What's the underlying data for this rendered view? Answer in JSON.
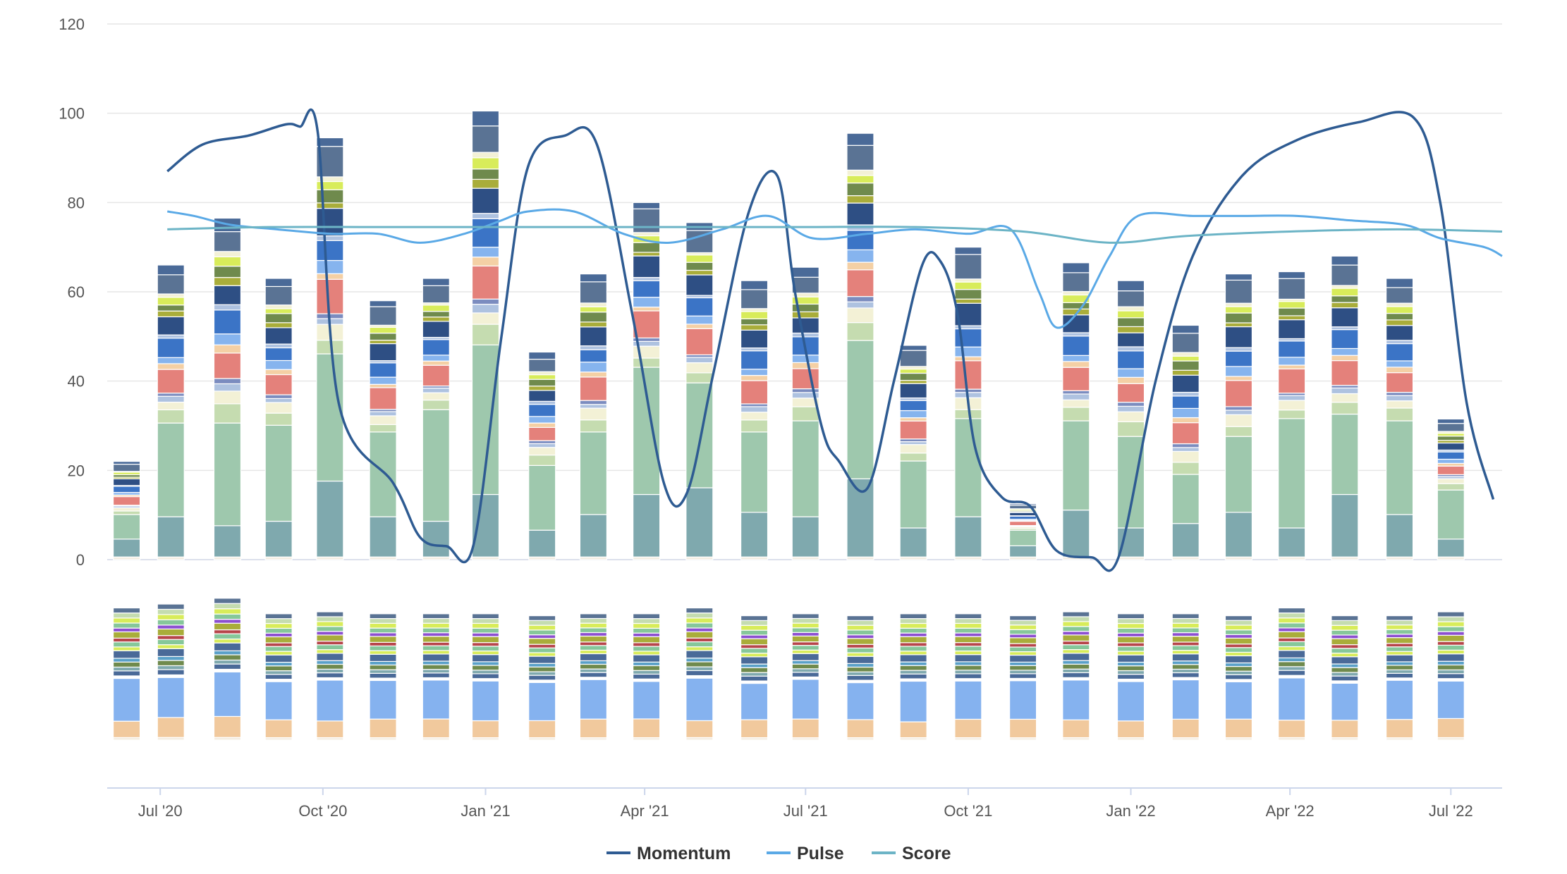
{
  "chart_data": {
    "type": "bar",
    "title": "",
    "xlabel": "",
    "ylabel": "",
    "ylim": [
      0,
      120
    ],
    "y_ticks": [
      0,
      20,
      40,
      60,
      80,
      100,
      120
    ],
    "x_ticks": [
      {
        "label": "Jul '20",
        "date": "2020-07-01"
      },
      {
        "label": "Oct '20",
        "date": "2020-10-01"
      },
      {
        "label": "Jan '21",
        "date": "2021-01-01"
      },
      {
        "label": "Apr '21",
        "date": "2021-04-01"
      },
      {
        "label": "Jul '21",
        "date": "2021-07-01"
      },
      {
        "label": "Oct '21",
        "date": "2021-10-01"
      },
      {
        "label": "Jan '22",
        "date": "2022-01-01"
      },
      {
        "label": "Apr '22",
        "date": "2022-04-01"
      },
      {
        "label": "Jul '22",
        "date": "2022-07-01"
      }
    ],
    "x_range": [
      "2020-06-01",
      "2022-07-30"
    ],
    "stacked_bars": {
      "dates": [
        "2020-06-12",
        "2020-07-07",
        "2020-08-08",
        "2020-09-06",
        "2020-10-05",
        "2020-11-04",
        "2020-12-04",
        "2021-01-01",
        "2021-02-02",
        "2021-03-03",
        "2021-04-02",
        "2021-05-02",
        "2021-06-02",
        "2021-07-01",
        "2021-08-01",
        "2021-08-31",
        "2021-10-01",
        "2021-11-01",
        "2021-12-01",
        "2022-01-01",
        "2022-02-01",
        "2022-03-03",
        "2022-04-02",
        "2022-05-02",
        "2022-06-02",
        "2022-07-01"
      ],
      "totals": [
        22,
        66,
        76.5,
        63,
        94.5,
        58,
        63,
        100.5,
        46.5,
        64,
        80,
        75.5,
        62.5,
        65.5,
        95.5,
        48,
        70,
        12.5,
        66.5,
        62.5,
        52.5,
        64,
        64.5,
        68,
        63,
        31.5
      ],
      "base_values": [
        4,
        9,
        7,
        8,
        17,
        9,
        8,
        14,
        6,
        9.5,
        14,
        15.5,
        10,
        9,
        17.5,
        6.5,
        9,
        2.5,
        10.5,
        6.5,
        7.5,
        10,
        6.5,
        14,
        9.5,
        4
      ],
      "second_values": [
        5.5,
        21,
        23,
        21.5,
        28.5,
        19,
        25,
        33.5,
        14.5,
        18.5,
        28.5,
        23.5,
        18,
        21.5,
        31,
        15,
        22,
        3.5,
        20,
        20.5,
        11,
        17,
        24.5,
        18,
        21,
        11
      ],
      "segment_colors": [
        "#7fa9ae",
        "#9ec8ad",
        "#c5dcb0",
        "#f3f1d6",
        "#aec2e0",
        "#7b8cbf",
        "#e4817b",
        "#f4d0a5",
        "#86b4ee",
        "#3b74c6",
        "#2e4f84",
        "#a9ad3a",
        "#6f8a4d",
        "#d8ec5a",
        "#5a7394",
        "#4a6a98"
      ]
    },
    "lower_bars": {
      "total_values": [
        34,
        35,
        36.5,
        32.5,
        33,
        32.5,
        32.5,
        32.5,
        32,
        32.5,
        32.5,
        34,
        32,
        32.5,
        32,
        32.5,
        32.5,
        32,
        33,
        32.5,
        32.5,
        32,
        34,
        32,
        32,
        33
      ],
      "segment_colors": [
        "#f1c99d",
        "#85b2ef",
        "#4a6a98",
        "#6f8a4d",
        "#86c79a",
        "#d8ec5a",
        "#5a7394",
        "#7fa9ae",
        "#5aa0c8",
        "#b7454a",
        "#a9ad3a",
        "#8c4fd1",
        "#c5dcb0",
        "#b0b0b0"
      ]
    },
    "series": [
      {
        "name": "Momentum",
        "type": "line",
        "color": "#2e5b92",
        "x": [
          "2020-07-05",
          "2020-07-25",
          "2020-08-20",
          "2020-09-10",
          "2020-09-18",
          "2020-09-28",
          "2020-10-10",
          "2020-11-10",
          "2020-11-25",
          "2020-12-10",
          "2020-12-25",
          "2021-01-10",
          "2021-01-25",
          "2021-02-15",
          "2021-03-05",
          "2021-03-25",
          "2021-04-12",
          "2021-04-25",
          "2021-05-10",
          "2021-05-30",
          "2021-06-15",
          "2021-06-25",
          "2021-07-10",
          "2021-07-20",
          "2021-08-05",
          "2021-08-20",
          "2021-09-05",
          "2021-09-15",
          "2021-09-25",
          "2021-10-05",
          "2021-10-20",
          "2021-11-05",
          "2021-11-20",
          "2021-12-10",
          "2021-12-25",
          "2022-01-15",
          "2022-02-05",
          "2022-03-05",
          "2022-04-05",
          "2022-05-10",
          "2022-06-10",
          "2022-06-25",
          "2022-07-10",
          "2022-07-25"
        ],
        "values": [
          87,
          93,
          95,
          97.5,
          97,
          96,
          35,
          17,
          5,
          3,
          3,
          50,
          88,
          95,
          93,
          55,
          17,
          15,
          42,
          78,
          86,
          60,
          30,
          22,
          16,
          40,
          66,
          67,
          55,
          25,
          14,
          12,
          2,
          0.5,
          0.5,
          40,
          68,
          86,
          94,
          98,
          99,
          80,
          35,
          13.5
        ]
      },
      {
        "name": "Pulse",
        "type": "line",
        "color": "#5aa9e6",
        "x": [
          "2020-07-05",
          "2020-07-20",
          "2020-08-10",
          "2020-09-05",
          "2020-10-05",
          "2020-11-01",
          "2020-11-25",
          "2020-12-20",
          "2021-01-10",
          "2021-01-25",
          "2021-02-20",
          "2021-03-20",
          "2021-04-15",
          "2021-05-15",
          "2021-06-10",
          "2021-07-05",
          "2021-08-05",
          "2021-09-01",
          "2021-10-01",
          "2021-10-25",
          "2021-11-10",
          "2021-11-20",
          "2021-12-05",
          "2021-12-20",
          "2022-01-05",
          "2022-02-05",
          "2022-03-05",
          "2022-04-05",
          "2022-05-05",
          "2022-06-05",
          "2022-06-25",
          "2022-07-20",
          "2022-07-30"
        ],
        "values": [
          78,
          77,
          75,
          74,
          73,
          73,
          71,
          73,
          76,
          78,
          78,
          73,
          71,
          74,
          77,
          72,
          73,
          74,
          73,
          74,
          60,
          52,
          57,
          68,
          77,
          77,
          77,
          77,
          76,
          75,
          72,
          70,
          68
        ]
      },
      {
        "name": "Score",
        "type": "line",
        "color": "#6cb4c6",
        "x": [
          "2020-07-05",
          "2020-09-01",
          "2020-11-01",
          "2021-01-01",
          "2021-03-01",
          "2021-05-01",
          "2021-07-01",
          "2021-09-01",
          "2021-11-01",
          "2021-12-20",
          "2022-02-01",
          "2022-04-01",
          "2022-06-01",
          "2022-07-30"
        ],
        "values": [
          74,
          74.5,
          74.5,
          74.5,
          74.5,
          74.5,
          74.5,
          74.5,
          73.5,
          71,
          72.5,
          73.5,
          74,
          73.5
        ]
      }
    ],
    "legend": {
      "placement": "bottom-center",
      "items": [
        "Momentum",
        "Pulse",
        "Score"
      ]
    }
  }
}
